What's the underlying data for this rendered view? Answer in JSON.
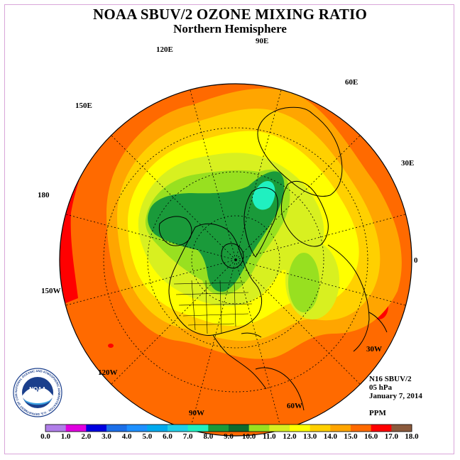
{
  "title": "NOAA SBUV/2 OZONE MIXING RATIO",
  "subtitle": "Northern Hemisphere",
  "longitude_labels": [
    "90E",
    "60E",
    "30E",
    "0",
    "30W",
    "60W",
    "90W",
    "120W",
    "150W",
    "180",
    "150E",
    "120E"
  ],
  "info": {
    "satellite": "N16 SBUV/2",
    "pressure": "05 hPa",
    "date": "January 7, 2014",
    "units": "PPM"
  },
  "logo": {
    "name": "NOAA",
    "ring_text": "NATIONAL OCEANIC AND ATMOSPHERIC ADMINISTRATION · U.S. DEPARTMENT OF COMMERCE"
  },
  "colorbar": {
    "ticks": [
      "0.0",
      "1.0",
      "2.0",
      "3.0",
      "4.0",
      "5.0",
      "6.0",
      "7.0",
      "8.0",
      "9.0",
      "10.0",
      "11.0",
      "12.0",
      "13.0",
      "14.0",
      "15.0",
      "16.0",
      "17.0",
      "18.0"
    ],
    "colors": [
      "#b07ee8",
      "#d9a6f0",
      "#e000e0",
      "#0000e0",
      "#1c6fe8",
      "#1e90ff",
      "#00aaee",
      "#20d0e8",
      "#20f0c0",
      "#1a9a3a",
      "#0d6b2e",
      "#98e020",
      "#d8f020",
      "#ffff00",
      "#ffd000",
      "#ffa500",
      "#ff6a00",
      "#ff0000",
      "#8b5a3c"
    ]
  },
  "colors": {
    "frame": "#d9a6d9",
    "land_outline": "#000000",
    "gridline": "#000000"
  }
}
